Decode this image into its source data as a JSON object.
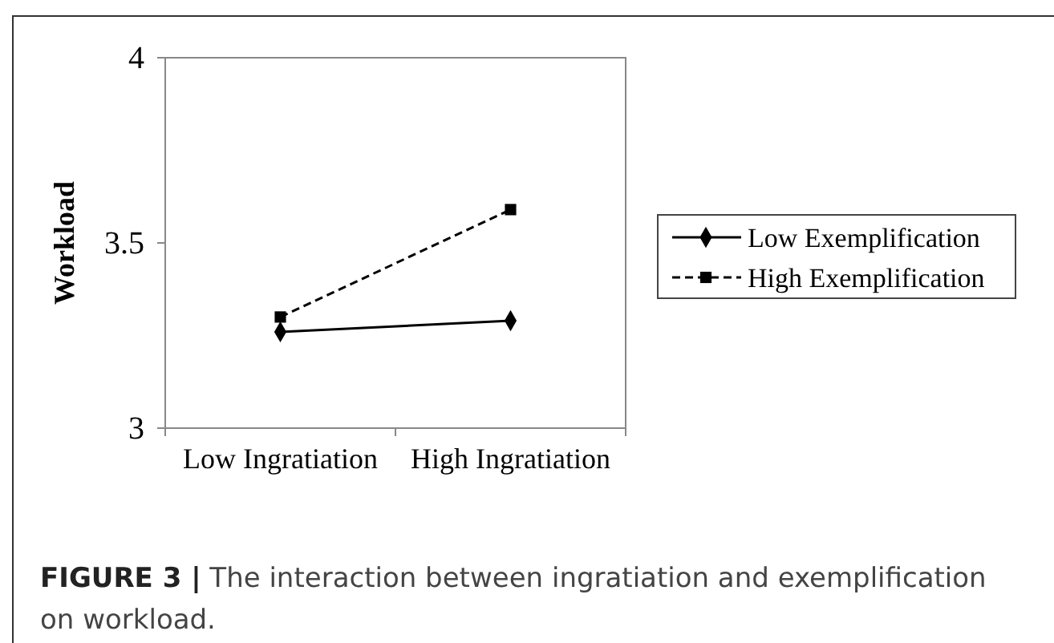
{
  "chart_data": {
    "type": "line",
    "title": "FIGURE 3 |",
    "annotations": [
      "The interaction between ingratiation and exemplification on workload."
    ],
    "ylabel": "Workload",
    "categories": [
      "Low Ingratiation",
      "High Ingratiation"
    ],
    "ylim": [
      3,
      4
    ],
    "yticks": [
      3,
      3.5,
      4
    ],
    "grid": false,
    "legend": "right",
    "series": [
      {
        "name": "Low Exemplification",
        "color": "#000000",
        "values": [
          3.26,
          3.29
        ],
        "marker": "diamond",
        "line_style": "solid"
      },
      {
        "name": "High Exemplification",
        "color": "#000000",
        "values": [
          3.3,
          3.59
        ],
        "marker": "square",
        "line_style": "dashed"
      }
    ]
  }
}
